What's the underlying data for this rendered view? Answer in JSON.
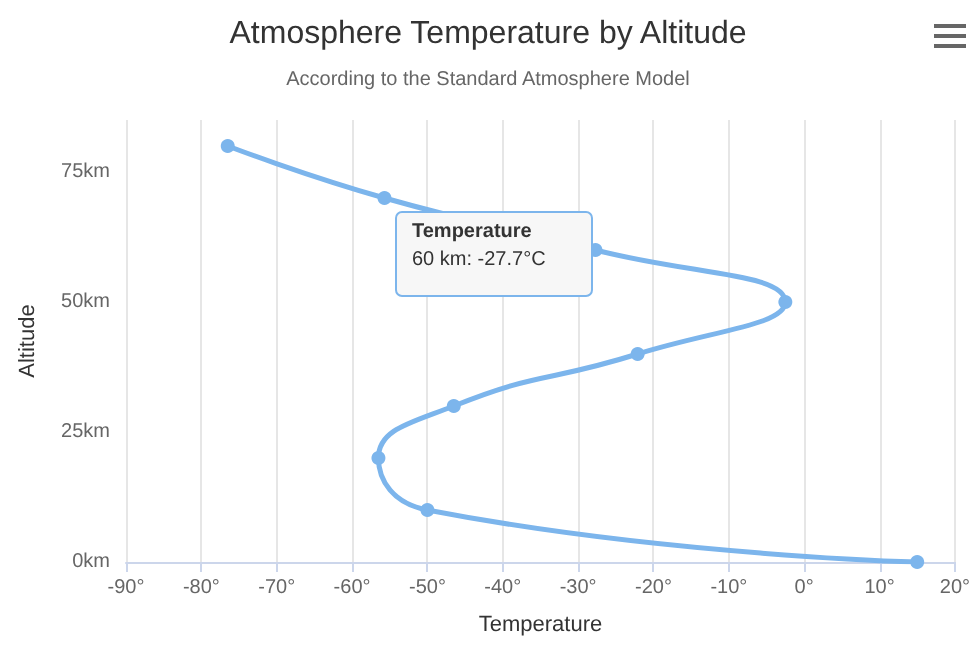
{
  "chart_data": {
    "type": "line",
    "orientation": "horizontal",
    "title": "Atmosphere Temperature by Altitude",
    "subtitle": "According to the Standard Atmosphere Model",
    "xlabel": "Temperature",
    "ylabel": "Altitude",
    "x": [
      0,
      10,
      20,
      30,
      40,
      50,
      60,
      70,
      80
    ],
    "series": [
      {
        "color": "#7cb5ec",
        "values": [
          15,
          -50,
          -56.5,
          -46.5,
          -22.1,
          -2.5,
          -27.7,
          -55.7,
          -76.5
        ]
      }
    ],
    "xlim": [
      -90,
      20
    ],
    "xticks": [
      {
        "value": -90,
        "label": "-90°"
      },
      {
        "value": -80,
        "label": "-80°"
      },
      {
        "value": -70,
        "label": "-70°"
      },
      {
        "value": -60,
        "label": "-60°"
      },
      {
        "value": -50,
        "label": "-50°"
      },
      {
        "value": -40,
        "label": "-40°"
      },
      {
        "value": -30,
        "label": "-30°"
      },
      {
        "value": -20,
        "label": "-20°"
      },
      {
        "value": -10,
        "label": "-10°"
      },
      {
        "value": 0,
        "label": "0°"
      },
      {
        "value": 10,
        "label": "10°"
      },
      {
        "value": 20,
        "label": "20°"
      }
    ],
    "ylim": [
      0,
      85
    ],
    "yticks": [
      {
        "value": 0,
        "label": "0km"
      },
      {
        "value": 25,
        "label": "25km"
      },
      {
        "value": 50,
        "label": "50km"
      },
      {
        "value": 75,
        "label": "75km"
      }
    ],
    "grid": "x",
    "marker": "circle",
    "line_style": "solid",
    "annotations": [
      "Temperature",
      "60 km: -27.7°C"
    ]
  }
}
